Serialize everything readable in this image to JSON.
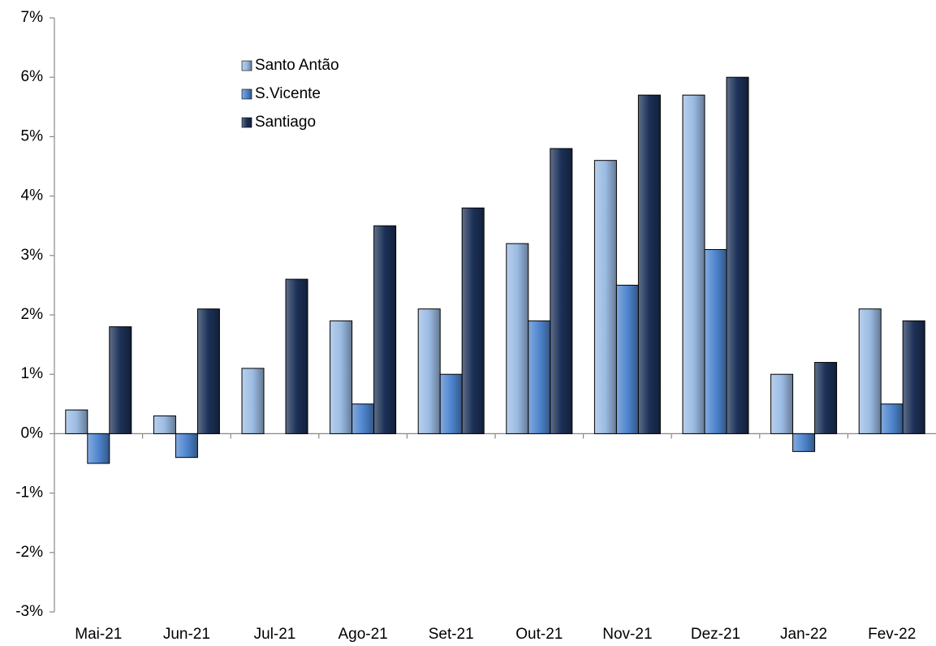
{
  "chart_data": {
    "type": "bar",
    "categories": [
      "Mai-21",
      "Jun-21",
      "Jul-21",
      "Ago-21",
      "Set-21",
      "Out-21",
      "Nov-21",
      "Dez-21",
      "Jan-22",
      "Fev-22"
    ],
    "series": [
      {
        "name": "Santo Antão",
        "color": "#9bbbe3",
        "values": [
          0.4,
          0.3,
          1.1,
          1.9,
          2.1,
          3.2,
          4.6,
          5.7,
          1.0,
          2.1
        ]
      },
      {
        "name": "S.Vicente",
        "color": "#4f86cf",
        "values": [
          -0.5,
          -0.4,
          0,
          0.5,
          1.0,
          1.9,
          2.5,
          3.1,
          -0.3,
          0.5
        ]
      },
      {
        "name": "Santiago",
        "color": "#1c3158",
        "values": [
          1.8,
          2.1,
          2.6,
          3.5,
          3.8,
          4.8,
          5.7,
          6.0,
          1.2,
          1.9
        ]
      }
    ],
    "ylim": [
      -3,
      7
    ],
    "yticks": [
      {
        "value": -3,
        "label": "-3%"
      },
      {
        "value": -2,
        "label": "-2%"
      },
      {
        "value": -1,
        "label": "-1%"
      },
      {
        "value": 0,
        "label": "0%"
      },
      {
        "value": 1,
        "label": "1%"
      },
      {
        "value": 2,
        "label": "2%"
      },
      {
        "value": 3,
        "label": "3%"
      },
      {
        "value": 4,
        "label": "4%"
      },
      {
        "value": 5,
        "label": "5%"
      },
      {
        "value": 6,
        "label": "6%"
      },
      {
        "value": 7,
        "label": "7%"
      }
    ]
  }
}
